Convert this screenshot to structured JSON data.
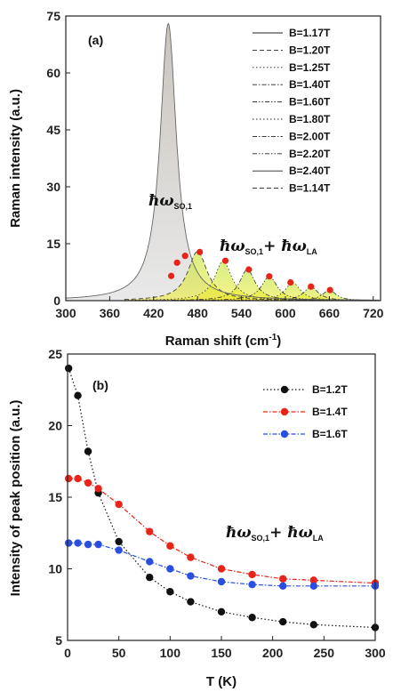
{
  "chart_data": [
    {
      "type": "area",
      "panel_label": "(a)",
      "xlabel": "Raman shift (cm",
      "xlabel_sup": "-1",
      "xlabel_end": ")",
      "ylabel": "Raman intensity (a.u.)",
      "xlim": [
        300,
        730
      ],
      "ylim": [
        0,
        75
      ],
      "xticks": [
        300,
        360,
        420,
        480,
        540,
        600,
        660,
        720
      ],
      "yticks": [
        0,
        15,
        30,
        45,
        60,
        75
      ],
      "annotation_so": "ħω",
      "annotation_so_sub": "SO,1",
      "annotation_sum_plus": "+ ħω",
      "annotation_sum_sub2": "LA",
      "legend": [
        "B=1.17T",
        "B=1.20T",
        "B=1.25T",
        "B=1.40T",
        "B=1.60T",
        "B=1.80T",
        "B=2.00T",
        "B=2.20T",
        "B=2.40T",
        "B=1.14T"
      ],
      "legend_styles": [
        "solid",
        "dash",
        "dot",
        "dashdot",
        "dashdotdot",
        "dot",
        "dashdot",
        "dashdotdot",
        "solid",
        "dash"
      ],
      "main_peak": {
        "center": 440,
        "amplitude": 73,
        "width": 27
      },
      "lorentz_peaks": [
        {
          "center": 480,
          "amplitude": 13,
          "width": 32
        },
        {
          "center": 515,
          "amplitude": 10.5,
          "width": 28
        },
        {
          "center": 548,
          "amplitude": 8.2,
          "width": 26
        },
        {
          "center": 578,
          "amplitude": 6.4,
          "width": 26
        },
        {
          "center": 610,
          "amplitude": 4.8,
          "width": 25
        },
        {
          "center": 635,
          "amplitude": 3.6,
          "width": 24
        },
        {
          "center": 660,
          "amplitude": 2.8,
          "width": 22
        }
      ],
      "markers": [
        {
          "x": 444,
          "y": 6.5
        },
        {
          "x": 452,
          "y": 10.0
        },
        {
          "x": 463,
          "y": 11.8
        },
        {
          "x": 483,
          "y": 12.8
        },
        {
          "x": 518,
          "y": 10.5
        },
        {
          "x": 550,
          "y": 8.2
        },
        {
          "x": 578,
          "y": 6.4
        },
        {
          "x": 607,
          "y": 4.8
        },
        {
          "x": 635,
          "y": 3.7
        },
        {
          "x": 661,
          "y": 2.8
        }
      ],
      "colors": {
        "main_fill": "#d8d8d8",
        "phonon_fill": "#b6e020",
        "yellow_fill": "#f2ec2a",
        "marker": "#e8241a"
      }
    },
    {
      "type": "line",
      "panel_label": "(b)",
      "xlabel": "T (K)",
      "ylabel": "Intensity of peak position (a.u.)",
      "xlim": [
        0,
        300
      ],
      "ylim": [
        5,
        25
      ],
      "xticks": [
        0,
        50,
        100,
        150,
        200,
        250,
        300
      ],
      "yticks": [
        5,
        10,
        15,
        20,
        25
      ],
      "annotation_sum": "ħω",
      "annotation_sum_sub1": "SO,1",
      "annotation_sum_plus": "+ ħω",
      "annotation_sum_sub2": "LA",
      "x": [
        1,
        10,
        20,
        30,
        50,
        80,
        100,
        120,
        150,
        180,
        210,
        240,
        300
      ],
      "series": [
        {
          "name": "B=1.2T",
          "color": "#111111",
          "values": [
            24.0,
            22.1,
            18.2,
            15.3,
            11.9,
            9.4,
            8.4,
            7.7,
            7.0,
            6.6,
            6.3,
            6.1,
            5.9
          ]
        },
        {
          "name": "B=1.4T",
          "color": "#e8241a",
          "values": [
            16.3,
            16.3,
            16.0,
            15.6,
            14.5,
            12.6,
            11.6,
            10.8,
            10.0,
            9.6,
            9.3,
            9.2,
            9.0
          ]
        },
        {
          "name": "B=1.6T",
          "color": "#2a4fe0",
          "values": [
            11.8,
            11.8,
            11.7,
            11.7,
            11.3,
            10.5,
            10.0,
            9.5,
            9.1,
            8.9,
            8.8,
            8.8,
            8.8
          ]
        }
      ]
    }
  ]
}
